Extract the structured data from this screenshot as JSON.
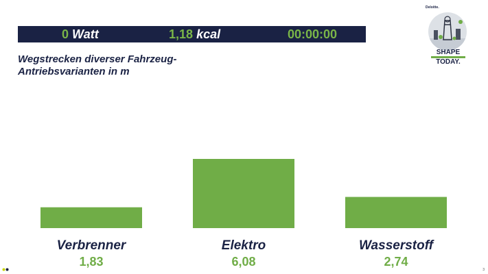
{
  "stats": {
    "watt_value": "0",
    "watt_unit": "Watt",
    "kcal_value": "1,18",
    "kcal_unit": "kcal",
    "timer": "00:00:00"
  },
  "subtitle_line1": "Wegstrecken diverser Fahrzeug-",
  "subtitle_line2": "Antriebsvarianten in m",
  "logo": {
    "brand": "Deloitte.",
    "line1": "SHAPE",
    "line2": "TODAY."
  },
  "page_number": "3",
  "colors": {
    "bar": "#70ad47",
    "label": "#1a2244",
    "value": "#70ad47",
    "header_bg": "#1a2244"
  },
  "chart_data": {
    "type": "bar",
    "title": "Wegstrecken diverser Fahrzeug-Antriebsvarianten in m",
    "categories": [
      "Verbrenner",
      "Elektro",
      "Wasserstoff"
    ],
    "values": [
      1.83,
      6.08,
      2.74
    ],
    "value_labels": [
      "1,83",
      "6,08",
      "2,74"
    ],
    "xlabel": "",
    "ylabel": "",
    "ylim": [
      0,
      6.08
    ],
    "grid": false,
    "legend": "none"
  }
}
